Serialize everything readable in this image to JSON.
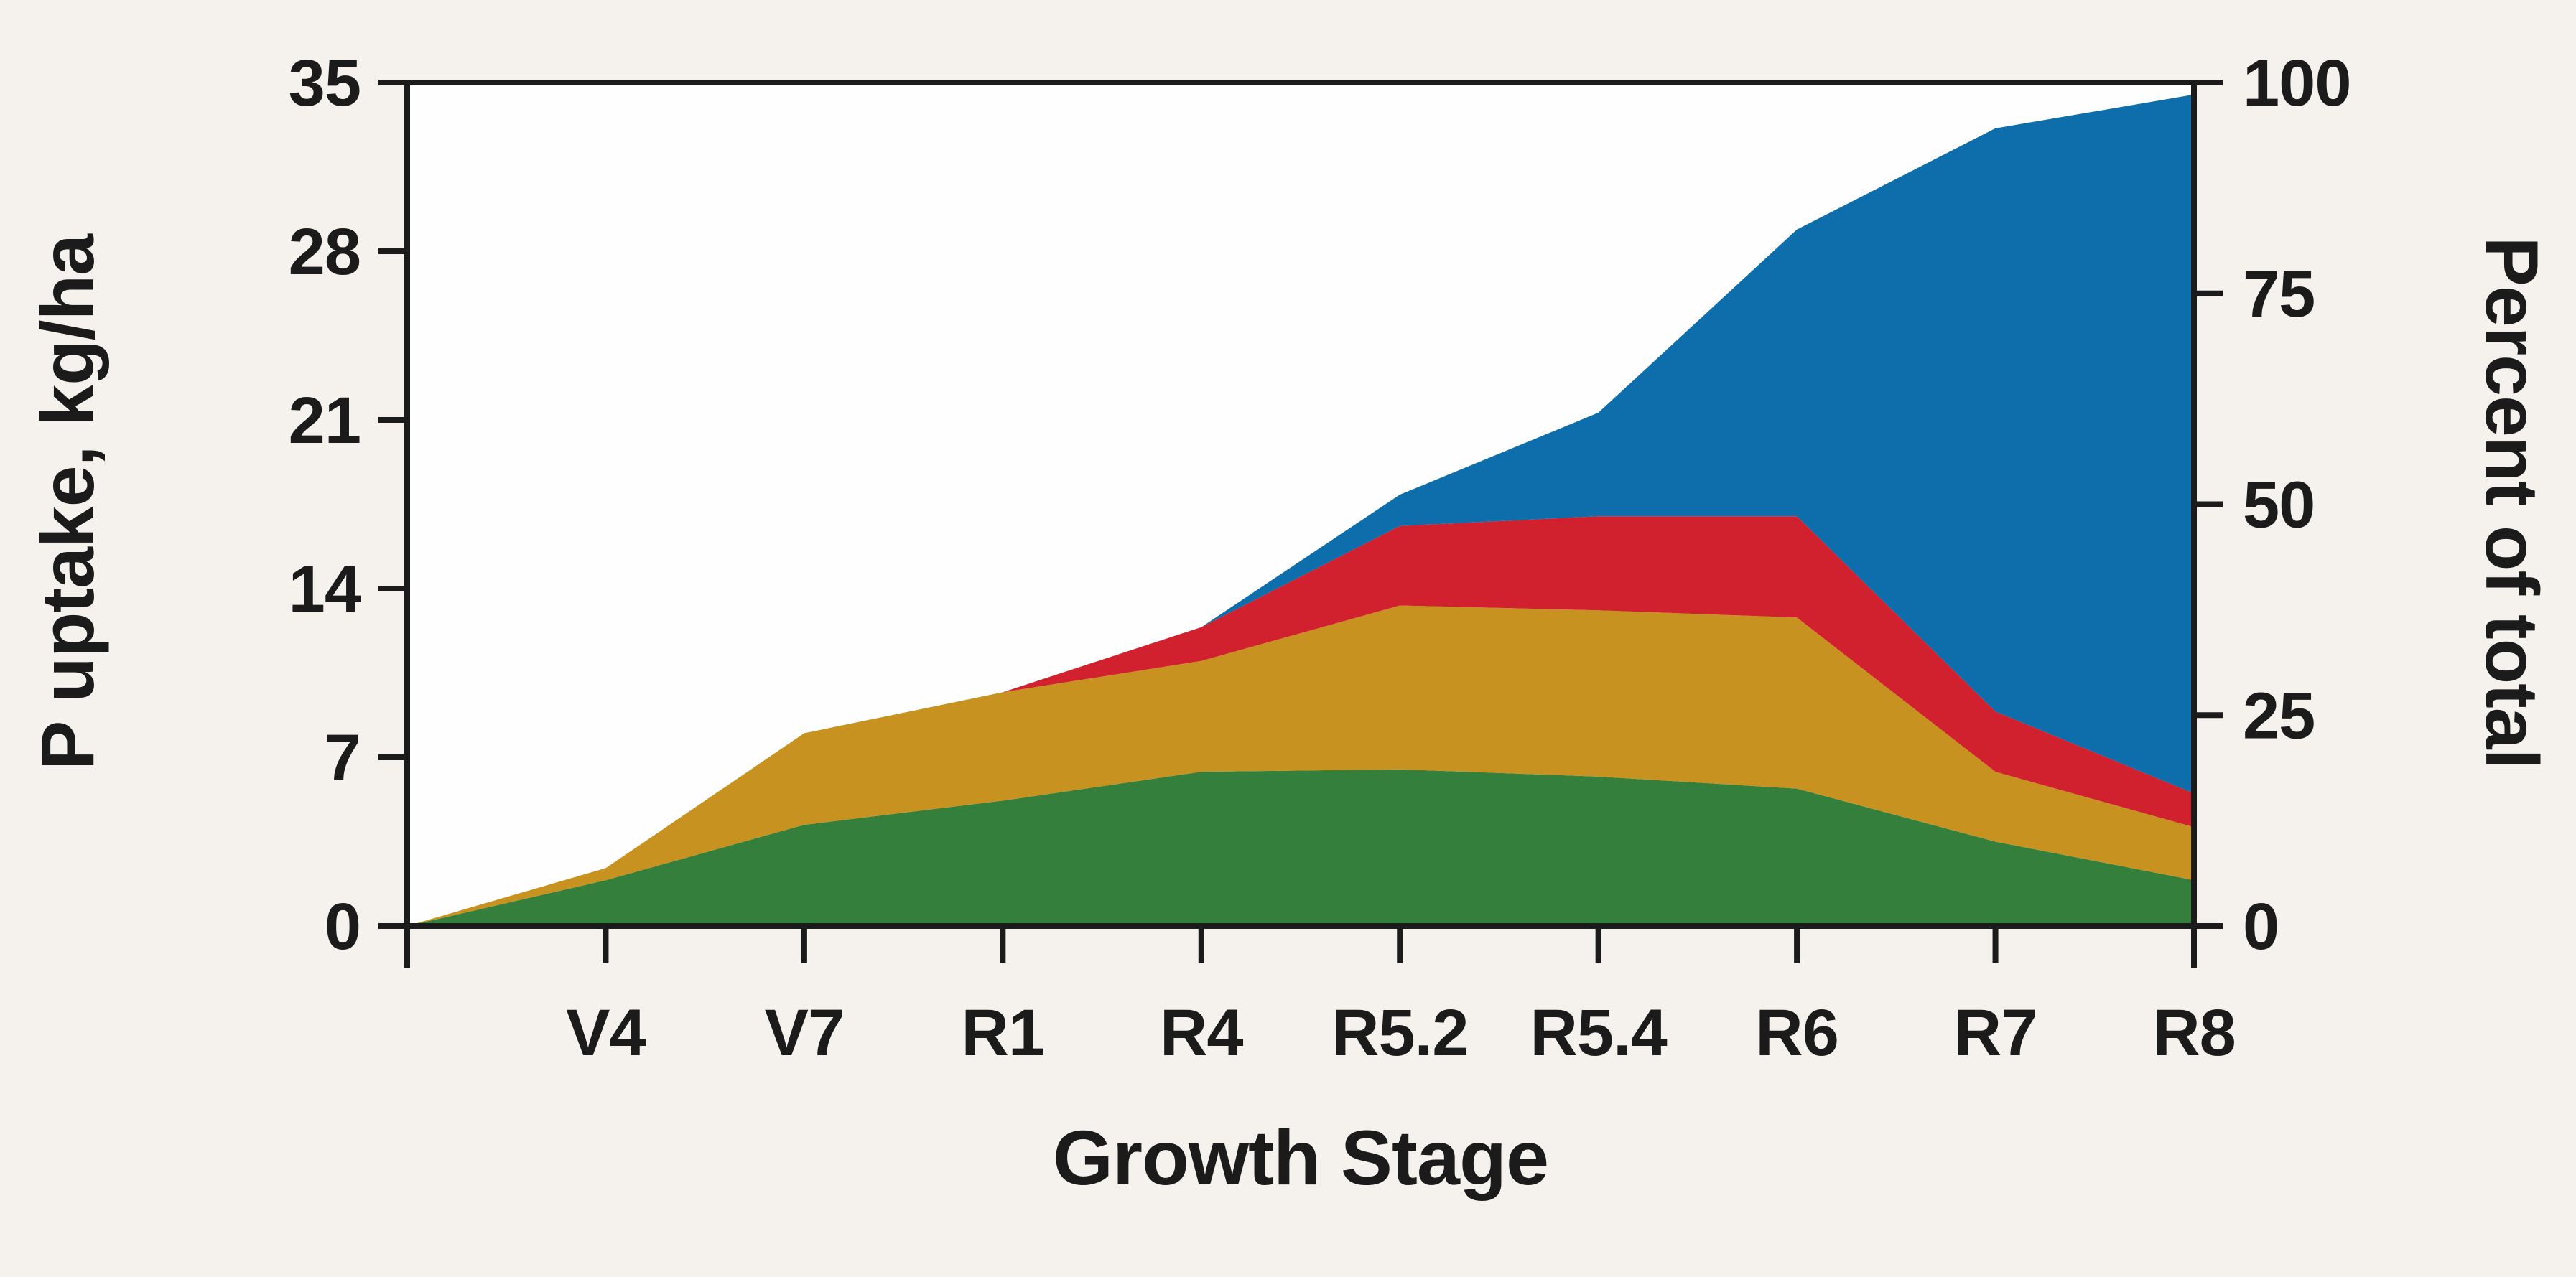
{
  "chart_data": {
    "type": "area",
    "stacked": true,
    "title": "",
    "xlabel": "Growth Stage",
    "ylabel_left": "P uptake, kg/ha",
    "ylabel_right": "Percent of total",
    "x_categories": [
      "V4",
      "V7",
      "R1",
      "R4",
      "R5.2",
      "R5.4",
      "R6",
      "R7",
      "R8"
    ],
    "starts_at_origin": true,
    "ylim_left": [
      0,
      35
    ],
    "yticks_left": [
      0,
      7,
      14,
      21,
      28,
      35
    ],
    "ylim_right": [
      0,
      100
    ],
    "yticks_right": [
      0,
      25,
      50,
      75,
      100
    ],
    "grid": false,
    "legend": "none",
    "series": [
      {
        "name": "green-bottom-layer",
        "color": "#337f3b",
        "values": [
          0,
          1.9,
          4.2,
          5.2,
          6.4,
          6.5,
          6.2,
          5.7,
          3.5,
          1.9
        ]
      },
      {
        "name": "gold-second-layer",
        "color": "#c79220",
        "values": [
          0,
          0.5,
          3.8,
          4.5,
          4.6,
          6.8,
          6.9,
          7.1,
          2.9,
          2.2
        ]
      },
      {
        "name": "red-third-layer",
        "color": "#d1202e",
        "values": [
          0,
          0.0,
          0.0,
          0.0,
          1.4,
          3.3,
          3.9,
          4.2,
          2.5,
          1.4
        ]
      },
      {
        "name": "blue-top-layer",
        "color": "#0e6dab",
        "values": [
          0,
          0.0,
          0.0,
          0.0,
          0.0,
          1.3,
          4.3,
          11.9,
          24.2,
          29.0
        ]
      }
    ],
    "cumulative_totals": [
      0,
      2.4,
      8.0,
      9.7,
      12.4,
      17.9,
      21.3,
      28.9,
      33.1,
      34.5
    ]
  },
  "colors": {
    "background": "#f5f2ee",
    "plot_background": "#fefefe",
    "axis": "#1b1b1b"
  }
}
